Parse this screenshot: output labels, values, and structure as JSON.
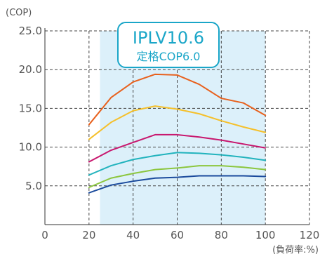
{
  "chart_data": {
    "type": "line",
    "title": "",
    "ylabel": "(COP)",
    "xlabel": "(負荷率:%)",
    "xlim": [
      0,
      120
    ],
    "ylim": [
      0,
      25
    ],
    "x_ticks": [
      "0",
      "20",
      "40",
      "60",
      "80",
      "100",
      "120"
    ],
    "y_ticks": [
      "5.0",
      "10.0",
      "15.0",
      "20.0",
      "25.0"
    ],
    "grid": "dashed",
    "highlight_range": [
      25,
      100
    ],
    "highlight_color": "#dcf0fa",
    "annotation": {
      "line1": "IPLV10.6",
      "line2": "定格COP6.0",
      "color": "#1aa6c8"
    },
    "x": [
      20,
      30,
      40,
      50,
      60,
      70,
      80,
      90,
      100
    ],
    "series": [
      {
        "color": "#e8601c",
        "values": [
          12.9,
          16.4,
          18.4,
          19.4,
          19.3,
          18.1,
          16.3,
          15.7,
          14.1
        ]
      },
      {
        "color": "#f5c02b",
        "values": [
          11.0,
          13.2,
          14.7,
          15.3,
          14.9,
          14.3,
          13.4,
          12.6,
          11.9
        ]
      },
      {
        "color": "#c8176e",
        "values": [
          8.1,
          9.6,
          10.6,
          11.6,
          11.6,
          11.3,
          10.9,
          10.4,
          9.9
        ]
      },
      {
        "color": "#22b3bd",
        "values": [
          6.4,
          7.6,
          8.4,
          8.9,
          9.3,
          9.2,
          9.0,
          8.7,
          8.3
        ]
      },
      {
        "color": "#8cc63e",
        "values": [
          4.8,
          6.0,
          6.6,
          7.1,
          7.3,
          7.6,
          7.6,
          7.4,
          7.1
        ]
      },
      {
        "color": "#1a4a9c",
        "values": [
          4.1,
          5.1,
          5.6,
          6.0,
          6.1,
          6.3,
          6.3,
          6.3,
          6.2
        ]
      }
    ]
  }
}
